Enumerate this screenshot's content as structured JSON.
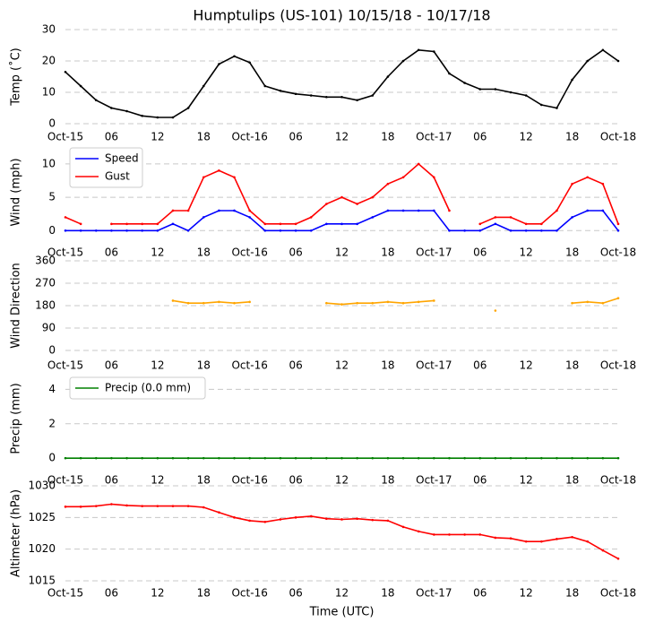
{
  "chart_data": [
    {
      "type": "line",
      "title": "Humptulips (US-101) 10/15/18 - 10/17/18",
      "ylabel": "Temp (˚C)",
      "x": [
        0,
        2,
        4,
        6,
        8,
        10,
        12,
        14,
        16,
        18,
        20,
        22,
        24,
        26,
        28,
        30,
        32,
        34,
        36,
        38,
        40,
        42,
        44,
        46,
        48,
        50,
        52,
        54,
        56,
        58,
        60,
        62,
        64,
        66,
        68,
        70,
        72
      ],
      "values": [
        16.5,
        12,
        7.5,
        5,
        4,
        2.5,
        2,
        2,
        5,
        12,
        19,
        21.5,
        19.5,
        12,
        10.5,
        9.5,
        9,
        8.5,
        8.5,
        7.5,
        9,
        15,
        20,
        23.5,
        23,
        16,
        13,
        11,
        11,
        10,
        9,
        6,
        5,
        14,
        20,
        23.5,
        20
      ],
      "color": "#000000",
      "xlim": [
        0,
        72
      ],
      "ylim": [
        0,
        30
      ],
      "yticks": [
        0,
        10,
        20,
        30
      ],
      "xticks": [
        {
          "value": 0,
          "label": "Oct-15"
        },
        {
          "value": 6,
          "label": "06"
        },
        {
          "value": 12,
          "label": "12"
        },
        {
          "value": 18,
          "label": "18"
        },
        {
          "value": 24,
          "label": "Oct-16"
        },
        {
          "value": 30,
          "label": "06"
        },
        {
          "value": 36,
          "label": "12"
        },
        {
          "value": 42,
          "label": "18"
        },
        {
          "value": 48,
          "label": "Oct-17"
        },
        {
          "value": 54,
          "label": "06"
        },
        {
          "value": 60,
          "label": "12"
        },
        {
          "value": 66,
          "label": "18"
        },
        {
          "value": 72,
          "label": "Oct-18"
        }
      ],
      "grid": true
    },
    {
      "type": "line",
      "ylabel": "Wind (mph)",
      "x": [
        0,
        2,
        4,
        6,
        8,
        10,
        12,
        14,
        16,
        18,
        20,
        22,
        24,
        26,
        28,
        30,
        32,
        34,
        36,
        38,
        40,
        42,
        44,
        46,
        48,
        50,
        52,
        54,
        56,
        58,
        60,
        62,
        64,
        66,
        68,
        70,
        72
      ],
      "series": [
        {
          "name": "Speed",
          "color": "#0000ff",
          "values": [
            0,
            0,
            0,
            0,
            0,
            0,
            0,
            1,
            0,
            2,
            3,
            3,
            2,
            0,
            0,
            0,
            0,
            1,
            1,
            1,
            2,
            3,
            3,
            3,
            3,
            0,
            0,
            0,
            1,
            0,
            0,
            0,
            0,
            2,
            3,
            3,
            0
          ]
        },
        {
          "name": "Gust",
          "color": "#ff0000",
          "values": [
            2,
            1,
            null,
            1,
            1,
            1,
            1,
            3,
            3,
            8,
            9,
            8,
            3,
            1,
            1,
            1,
            2,
            4,
            5,
            4,
            5,
            7,
            8,
            10,
            8,
            3,
            null,
            1,
            2,
            2,
            1,
            1,
            3,
            7,
            8,
            7,
            1
          ]
        }
      ],
      "xlim": [
        0,
        72
      ],
      "ylim": [
        -0.5,
        12
      ],
      "yticks": [
        0,
        5,
        10
      ],
      "xticks": [
        {
          "value": 0,
          "label": "Oct-15"
        },
        {
          "value": 6,
          "label": "06"
        },
        {
          "value": 12,
          "label": "12"
        },
        {
          "value": 18,
          "label": "18"
        },
        {
          "value": 24,
          "label": "Oct-16"
        },
        {
          "value": 30,
          "label": "06"
        },
        {
          "value": 36,
          "label": "12"
        },
        {
          "value": 42,
          "label": "18"
        },
        {
          "value": 48,
          "label": "Oct-17"
        },
        {
          "value": 54,
          "label": "06"
        },
        {
          "value": 60,
          "label": "12"
        },
        {
          "value": 66,
          "label": "18"
        },
        {
          "value": 72,
          "label": "Oct-18"
        }
      ],
      "grid": true,
      "legend": "upper left"
    },
    {
      "type": "line",
      "ylabel": "Wind Direction",
      "x": [
        0,
        2,
        4,
        6,
        8,
        10,
        12,
        14,
        16,
        18,
        20,
        22,
        24,
        26,
        28,
        30,
        32,
        34,
        36,
        38,
        40,
        42,
        44,
        46,
        48,
        50,
        52,
        54,
        56,
        58,
        60,
        62,
        64,
        66,
        68,
        70,
        72
      ],
      "values": [
        null,
        null,
        null,
        null,
        null,
        null,
        null,
        200,
        190,
        190,
        195,
        190,
        195,
        null,
        null,
        null,
        null,
        190,
        185,
        190,
        190,
        195,
        190,
        195,
        200,
        null,
        null,
        null,
        160,
        null,
        null,
        null,
        null,
        190,
        195,
        190,
        210
      ],
      "color": "#ffa500",
      "xlim": [
        0,
        72
      ],
      "ylim": [
        0,
        360
      ],
      "yticks": [
        0,
        90,
        180,
        270,
        360
      ],
      "xticks": [
        {
          "value": 0,
          "label": "Oct-15"
        },
        {
          "value": 6,
          "label": "06"
        },
        {
          "value": 12,
          "label": "12"
        },
        {
          "value": 18,
          "label": "18"
        },
        {
          "value": 24,
          "label": "Oct-16"
        },
        {
          "value": 30,
          "label": "06"
        },
        {
          "value": 36,
          "label": "12"
        },
        {
          "value": 42,
          "label": "18"
        },
        {
          "value": 48,
          "label": "Oct-17"
        },
        {
          "value": 54,
          "label": "06"
        },
        {
          "value": 60,
          "label": "12"
        },
        {
          "value": 66,
          "label": "18"
        },
        {
          "value": 72,
          "label": "Oct-18"
        }
      ],
      "grid": true
    },
    {
      "type": "line",
      "ylabel": "Precip (mm)",
      "x": [
        0,
        2,
        4,
        6,
        8,
        10,
        12,
        14,
        16,
        18,
        20,
        22,
        24,
        26,
        28,
        30,
        32,
        34,
        36,
        38,
        40,
        42,
        44,
        46,
        48,
        50,
        52,
        54,
        56,
        58,
        60,
        62,
        64,
        66,
        68,
        70,
        72
      ],
      "series": [
        {
          "name": "Precip (0.0 mm)",
          "color": "#008000",
          "values": [
            0,
            0,
            0,
            0,
            0,
            0,
            0,
            0,
            0,
            0,
            0,
            0,
            0,
            0,
            0,
            0,
            0,
            0,
            0,
            0,
            0,
            0,
            0,
            0,
            0,
            0,
            0,
            0,
            0,
            0,
            0,
            0,
            0,
            0,
            0,
            0,
            0
          ]
        }
      ],
      "xlim": [
        0,
        72
      ],
      "ylim": [
        -0.2,
        4.8
      ],
      "yticks": [
        0,
        2,
        4
      ],
      "xticks": [
        {
          "value": 0,
          "label": "Oct-15"
        },
        {
          "value": 6,
          "label": "06"
        },
        {
          "value": 12,
          "label": "12"
        },
        {
          "value": 18,
          "label": "18"
        },
        {
          "value": 24,
          "label": "Oct-16"
        },
        {
          "value": 30,
          "label": "06"
        },
        {
          "value": 36,
          "label": "12"
        },
        {
          "value": 42,
          "label": "18"
        },
        {
          "value": 48,
          "label": "Oct-17"
        },
        {
          "value": 54,
          "label": "06"
        },
        {
          "value": 60,
          "label": "12"
        },
        {
          "value": 66,
          "label": "18"
        },
        {
          "value": 72,
          "label": "Oct-18"
        }
      ],
      "grid": true,
      "legend": "upper left"
    },
    {
      "type": "line",
      "ylabel": "Altimeter (hPa)",
      "xlabel": "Time (UTC)",
      "x": [
        0,
        2,
        4,
        6,
        8,
        10,
        12,
        14,
        16,
        18,
        20,
        22,
        24,
        26,
        28,
        30,
        32,
        34,
        36,
        38,
        40,
        42,
        44,
        46,
        48,
        50,
        52,
        54,
        56,
        58,
        60,
        62,
        64,
        66,
        68,
        70,
        72
      ],
      "values": [
        1026.7,
        1026.7,
        1026.8,
        1027.1,
        1026.9,
        1026.8,
        1026.8,
        1026.8,
        1026.8,
        1026.6,
        1025.8,
        1025,
        1024.5,
        1024.3,
        1024.7,
        1025,
        1025.2,
        1024.8,
        1024.7,
        1024.8,
        1024.6,
        1024.5,
        1023.5,
        1022.8,
        1022.3,
        1022.3,
        1022.3,
        1022.3,
        1021.8,
        1021.7,
        1021.2,
        1021.2,
        1021.6,
        1021.9,
        1021.2,
        1019.8,
        1018.5
      ],
      "color": "#ff0000",
      "xlim": [
        0,
        72
      ],
      "ylim": [
        1015,
        1030
      ],
      "yticks": [
        1015,
        1020,
        1025,
        1030
      ],
      "xticks": [
        {
          "value": 0,
          "label": "Oct-15"
        },
        {
          "value": 6,
          "label": "06"
        },
        {
          "value": 12,
          "label": "12"
        },
        {
          "value": 18,
          "label": "18"
        },
        {
          "value": 24,
          "label": "Oct-16"
        },
        {
          "value": 30,
          "label": "06"
        },
        {
          "value": 36,
          "label": "12"
        },
        {
          "value": 42,
          "label": "18"
        },
        {
          "value": 48,
          "label": "Oct-17"
        },
        {
          "value": 54,
          "label": "06"
        },
        {
          "value": 60,
          "label": "12"
        },
        {
          "value": 66,
          "label": "18"
        },
        {
          "value": 72,
          "label": "Oct-18"
        }
      ],
      "grid": true
    }
  ]
}
